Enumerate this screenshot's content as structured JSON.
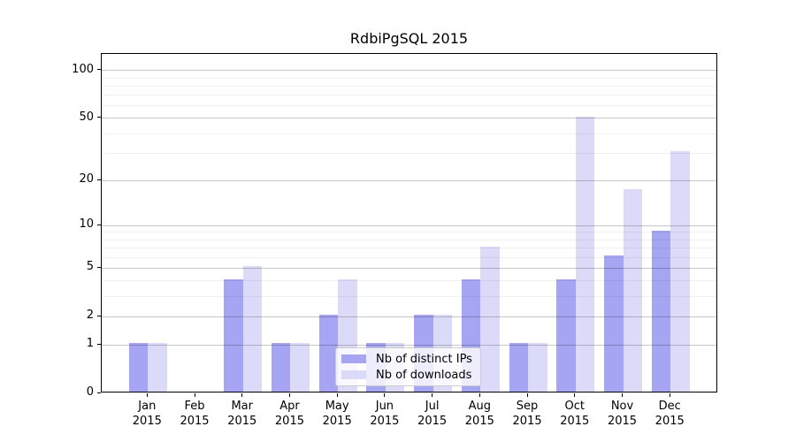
{
  "chart_data": {
    "type": "bar",
    "title": "RdbiPgSQL 2015",
    "categories": [
      "Jan",
      "Feb",
      "Mar",
      "Apr",
      "May",
      "Jun",
      "Jul",
      "Aug",
      "Sep",
      "Oct",
      "Nov",
      "Dec"
    ],
    "year": "2015",
    "series": [
      {
        "name": "Nb of distinct IPs",
        "color": "#a5a5f3",
        "values": [
          1,
          0,
          4,
          1,
          2,
          1,
          2,
          4,
          1,
          4,
          6,
          9
        ]
      },
      {
        "name": "Nb of downloads",
        "color": "#dbdbf9",
        "values": [
          1,
          0,
          5,
          1,
          4,
          1,
          2,
          7,
          1,
          50,
          17,
          30
        ]
      }
    ],
    "y_axis": {
      "scale": "log1p",
      "tick_values": [
        0,
        1,
        2,
        5,
        10,
        20,
        50,
        100
      ],
      "minor_tick_values": [
        3,
        4,
        6,
        7,
        8,
        9,
        30,
        40,
        60,
        70,
        80,
        90
      ]
    },
    "xlabel": "",
    "ylabel": "",
    "grid": "on",
    "legend_position": "lower-center",
    "colors": {
      "background": "#ffffff",
      "axis": "#000000",
      "grid_major": "#c7c7c7",
      "grid_minor": "#efefef"
    }
  }
}
